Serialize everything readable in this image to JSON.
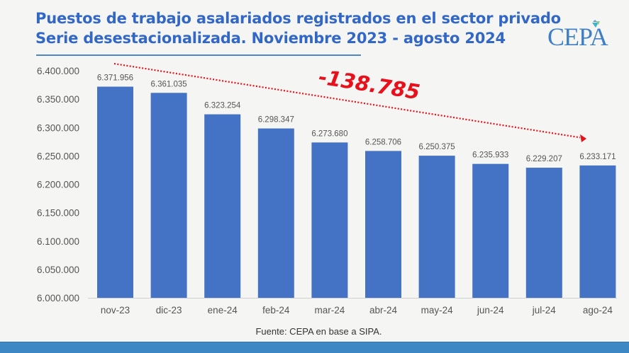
{
  "header": {
    "title_line1": "Puestos de trabajo asalariados registrados en el sector privado",
    "title_line2": "Serie desestacionalizada. Noviembre 2023 - agosto 2024",
    "logo_text": "CEPA"
  },
  "footer": {
    "source": "Fuente: CEPA en base a SIPA."
  },
  "colors": {
    "title": "#3367c6",
    "bar": "#4472c4",
    "annotation": "#e8101a",
    "footer_bar": "#3d87c5"
  },
  "chart_data": {
    "type": "bar",
    "title": "Puestos de trabajo asalariados registrados en el sector privado. Serie desestacionalizada. Noviembre 2023 - agosto 2024",
    "xlabel": "",
    "ylabel": "",
    "categories": [
      "nov-23",
      "dic-23",
      "ene-24",
      "feb-24",
      "mar-24",
      "abr-24",
      "may-24",
      "jun-24",
      "jul-24",
      "ago-24"
    ],
    "values": [
      6371956,
      6361035,
      6323254,
      6298347,
      6273680,
      6258706,
      6250375,
      6235933,
      6229207,
      6233171
    ],
    "data_labels": [
      "6.371.956",
      "6.361.035",
      "6.323.254",
      "6.298.347",
      "6.273.680",
      "6.258.706",
      "6.250.375",
      "6.235.933",
      "6.229.207",
      "6.233.171"
    ],
    "ylim": [
      6000000,
      6400000
    ],
    "yticks": [
      6000000,
      6050000,
      6100000,
      6150000,
      6200000,
      6250000,
      6300000,
      6350000,
      6400000
    ],
    "ytick_labels": [
      "6.000.000",
      "6.050.000",
      "6.100.000",
      "6.150.000",
      "6.200.000",
      "6.250.000",
      "6.300.000",
      "6.350.000",
      "6.400.000"
    ],
    "grid": false,
    "legend": "none",
    "annotations": [
      {
        "text": "-138.785",
        "type": "trend-arrow",
        "from": "nov-23",
        "to": "ago-24",
        "style": "dotted red arrow"
      }
    ]
  }
}
